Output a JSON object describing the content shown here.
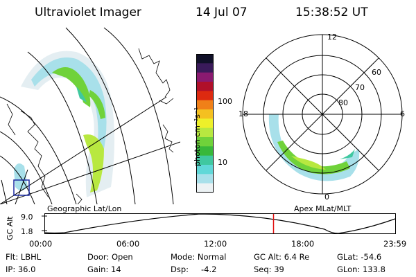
{
  "header": {
    "title": "Ultraviolet Imager",
    "date": "14 Jul 07",
    "time": "15:38:52 UT"
  },
  "colorbar": {
    "label": "photon cm⁻²s⁻¹",
    "ticks": [
      "100",
      "10"
    ],
    "colors": [
      "#101028",
      "#3a1a5a",
      "#8a1a70",
      "#b0102a",
      "#dd2a10",
      "#f08018",
      "#f4c020",
      "#eef02a",
      "#b8e840",
      "#70d23a",
      "#38b83a",
      "#40c8a0",
      "#60d8d8",
      "#a8e0ea",
      "#ecf2f4"
    ]
  },
  "left_panel": {
    "caption": "Geographic Lat/Lon"
  },
  "right_panel": {
    "caption": "Apex MLat/MLT",
    "mlt_labels": {
      "top": "12",
      "left": "18",
      "right": "6",
      "bottom": "0"
    },
    "lat_labels": [
      "60",
      "70",
      "80"
    ]
  },
  "orbit": {
    "ylabel": "GC Alt",
    "y_ticks": [
      "9.0",
      "1.8"
    ],
    "x_ticks": [
      "00:00",
      "06:00",
      "12:00",
      "18:00",
      "23:59"
    ],
    "marker_time": "15:38:52",
    "marker_color": "#e01010"
  },
  "footer": {
    "flt": "Flt: LBHL",
    "ip": "IP: 36.0",
    "door": "Door: Open",
    "gain": "Gain: 14",
    "mode": "Mode: Normal",
    "dsp_label": "Dsp:",
    "dsp_value": "-4.2",
    "gc_alt": "GC Alt: 6.4 Re",
    "seq": "Seq: 39",
    "glat": "GLat: -54.6",
    "glon": "GLon: 133.8"
  }
}
